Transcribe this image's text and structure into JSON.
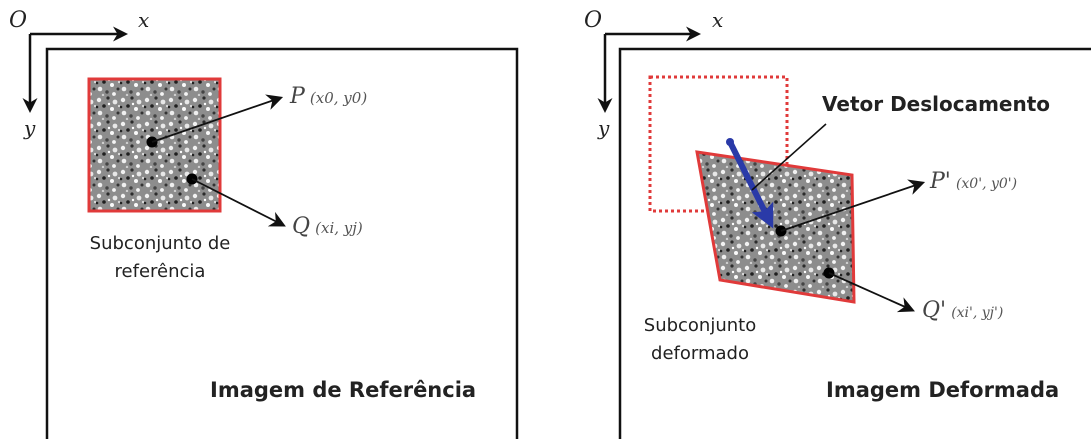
{
  "left_panel": {
    "title": "Imagem de Referência",
    "axis_origin": "O",
    "axis_x": "x",
    "axis_y": "y",
    "subset_label_line1": "Subconjunto de",
    "subset_label_line2": "referência",
    "point_p": "P",
    "point_p_coords": "(x0, y0)",
    "point_q": "Q",
    "point_q_coords": "(xi, yj)"
  },
  "right_panel": {
    "title": "Imagem Deformada",
    "axis_origin": "O",
    "axis_x": "x",
    "axis_y": "y",
    "displacement_label": "Vetor Deslocamento",
    "subset_label_line1": "Subconjunto",
    "subset_label_line2": "deformado",
    "point_p": "P'",
    "point_p_coords": "(x0', y0')",
    "point_q": "Q'",
    "point_q_coords": "(xi', yj')"
  },
  "colors": {
    "frame": "#111111",
    "subset_border": "#e03a3a",
    "reference_dashed": "#e03a3a",
    "displacement_arrow": "#2a3aa8",
    "speckle_bg": "#8a8a8a"
  }
}
